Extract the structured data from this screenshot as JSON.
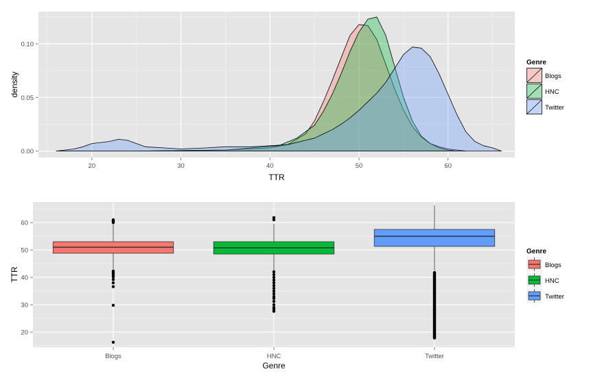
{
  "colors": {
    "panel": "#E5E5E5",
    "grid_major": "#FFFFFF",
    "grid_minor": "#F2F2F2",
    "tick_text": "#4D4D4D",
    "blogs": "#F8766D",
    "hnc": "#00BA38",
    "twitter": "#619CFF"
  },
  "chart_data": [
    {
      "type": "area",
      "subtype": "density",
      "title": "",
      "xlabel": "TTR",
      "ylabel": "density",
      "xlim": [
        14,
        67.5
      ],
      "ylim": [
        -0.006,
        0.13
      ],
      "x_ticks": [
        20,
        30,
        40,
        50,
        60
      ],
      "y_ticks": [
        0.0,
        0.05,
        0.1
      ],
      "y_tick_labels": [
        "0.00",
        "0.05",
        "0.10"
      ],
      "grid": true,
      "legend": {
        "title": "Genre",
        "placement": "right",
        "entries": [
          "Blogs",
          "HNC",
          "Twitter"
        ]
      },
      "series": [
        {
          "name": "Blogs",
          "color": "#F8766D",
          "x": [
            16,
            25,
            35,
            40,
            42,
            44,
            45,
            46,
            47,
            48,
            49,
            50,
            51,
            52,
            53,
            54,
            55,
            56,
            57,
            58,
            59,
            60,
            61,
            62
          ],
          "y": [
            0.0,
            0.0,
            0.001,
            0.003,
            0.006,
            0.016,
            0.028,
            0.046,
            0.066,
            0.087,
            0.108,
            0.118,
            0.117,
            0.104,
            0.081,
            0.058,
            0.038,
            0.023,
            0.013,
            0.007,
            0.004,
            0.002,
            0.001,
            0.0
          ]
        },
        {
          "name": "HNC",
          "color": "#00BA38",
          "x": [
            16,
            25,
            35,
            38,
            41,
            43,
            45,
            46,
            47,
            48,
            49,
            50,
            51,
            52,
            53,
            54,
            55,
            56,
            57,
            58,
            59,
            60,
            61,
            62
          ],
          "y": [
            0.0,
            0.0,
            0.001,
            0.003,
            0.005,
            0.012,
            0.024,
            0.037,
            0.053,
            0.072,
            0.093,
            0.111,
            0.123,
            0.125,
            0.108,
            0.079,
            0.05,
            0.028,
            0.014,
            0.007,
            0.003,
            0.001,
            0.0,
            0.0
          ]
        },
        {
          "name": "Twitter",
          "color": "#619CFF",
          "x": [
            16,
            18,
            19,
            20,
            21,
            22,
            23,
            24,
            25,
            26,
            28,
            30,
            33,
            35,
            38,
            40,
            42,
            44,
            45,
            46,
            47,
            48,
            49,
            50,
            51,
            52,
            53,
            54,
            55,
            56,
            57,
            58,
            59,
            60,
            61,
            62,
            63,
            64,
            65,
            66
          ],
          "y": [
            0.0,
            0.002,
            0.004,
            0.007,
            0.008,
            0.009,
            0.011,
            0.01,
            0.007,
            0.004,
            0.003,
            0.002,
            0.003,
            0.004,
            0.004,
            0.005,
            0.006,
            0.01,
            0.012,
            0.016,
            0.02,
            0.025,
            0.031,
            0.038,
            0.046,
            0.054,
            0.064,
            0.077,
            0.09,
            0.097,
            0.096,
            0.088,
            0.072,
            0.053,
            0.034,
            0.018,
            0.009,
            0.005,
            0.003,
            0.0
          ]
        }
      ]
    },
    {
      "type": "box",
      "title": "",
      "xlabel": "Genre",
      "ylabel": "TTR",
      "categories": [
        "Blogs",
        "HNC",
        "Twitter"
      ],
      "ylim": [
        14.5,
        67.5
      ],
      "y_ticks": [
        20,
        30,
        40,
        50,
        60
      ],
      "grid": true,
      "legend": {
        "title": "Genre",
        "placement": "right",
        "entries": [
          "Blogs",
          "HNC",
          "Twitter"
        ]
      },
      "boxes": [
        {
          "name": "Blogs",
          "color": "#F8766D",
          "whisker_low": 43,
          "q1": 48.8,
          "median": 51,
          "q3": 53,
          "whisker_high": 59.5,
          "outliers": [
            60,
            60.3,
            60.6,
            61,
            42.3,
            41.8,
            41.3,
            40.8,
            40.2,
            39.2,
            38,
            36.6,
            29.8,
            16.3
          ]
        },
        {
          "name": "HNC",
          "color": "#00BA38",
          "whisker_low": 42.5,
          "q1": 48.5,
          "median": 50.8,
          "q3": 53,
          "whisker_high": 59.5,
          "outliers": [
            61,
            61.8,
            42,
            41,
            40,
            39,
            38,
            37,
            36,
            35,
            34,
            33,
            32.3,
            31.2,
            30,
            29,
            28.4,
            27.6
          ]
        },
        {
          "name": "Twitter",
          "color": "#619CFF",
          "whisker_low": 42.5,
          "q1": 51.3,
          "median": 55,
          "q3": 57.5,
          "whisker_high": 66.3,
          "outlier_range": [
            17.3,
            42.3
          ]
        }
      ]
    }
  ]
}
